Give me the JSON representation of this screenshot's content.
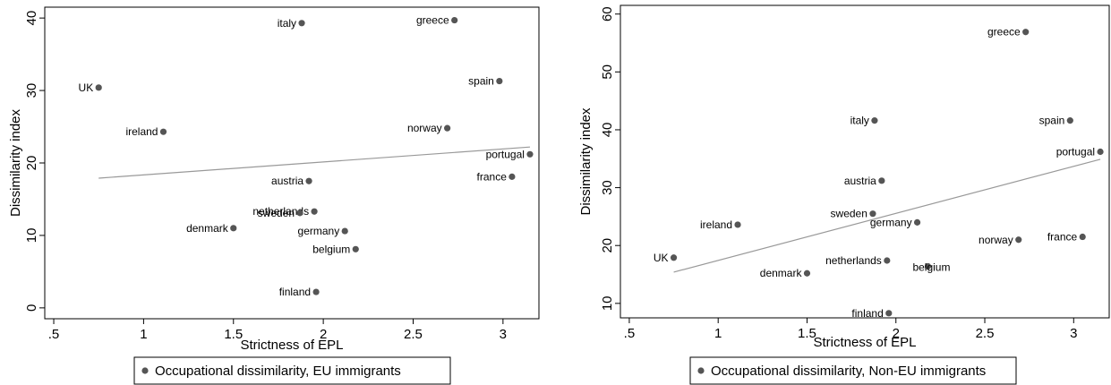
{
  "chart_data": [
    {
      "type": "scatter",
      "xlabel": "Strictness of EPL",
      "ylabel": "Dissimilarity index",
      "xlim": [
        0.45,
        3.2
      ],
      "ylim": [
        -1.5,
        41.5
      ],
      "xticks": [
        0.5,
        1,
        1.5,
        2,
        2.5,
        3
      ],
      "xtick_labels": [
        ".5",
        "1",
        "1.5",
        "2",
        "2.5",
        "3"
      ],
      "yticks": [
        0,
        10,
        20,
        30,
        40
      ],
      "ytick_labels": [
        "0",
        "10",
        "20",
        "30",
        "40"
      ],
      "grid": false,
      "legend": {
        "position": "bottom",
        "entries": [
          "Occupational dissimilarity, EU immigrants"
        ]
      },
      "colors": {
        "points": "#555555",
        "fit_line": "#999999"
      },
      "points": [
        {
          "label": "italy",
          "x": 1.88,
          "y": 39.3,
          "label_side": "left"
        },
        {
          "label": "greece",
          "x": 2.73,
          "y": 39.7,
          "label_side": "left"
        },
        {
          "label": "UK",
          "x": 0.75,
          "y": 30.4,
          "label_side": "left"
        },
        {
          "label": "spain",
          "x": 2.98,
          "y": 31.3,
          "label_side": "left"
        },
        {
          "label": "ireland",
          "x": 1.11,
          "y": 24.3,
          "label_side": "left"
        },
        {
          "label": "norway",
          "x": 2.69,
          "y": 24.8,
          "label_side": "left"
        },
        {
          "label": "portugal",
          "x": 3.15,
          "y": 21.2,
          "label_side": "left"
        },
        {
          "label": "france",
          "x": 3.05,
          "y": 18.1,
          "label_side": "left"
        },
        {
          "label": "austria",
          "x": 1.92,
          "y": 17.5,
          "label_side": "left"
        },
        {
          "label": "netherlands",
          "x": 1.95,
          "y": 13.3,
          "label_side": "left"
        },
        {
          "label": "sweden",
          "x": 1.87,
          "y": 13.1,
          "label_side": "left"
        },
        {
          "label": "denmark",
          "x": 1.5,
          "y": 11.0,
          "label_side": "left"
        },
        {
          "label": "germany",
          "x": 2.12,
          "y": 10.6,
          "label_side": "left"
        },
        {
          "label": "belgium",
          "x": 2.18,
          "y": 8.1,
          "label_side": "left"
        },
        {
          "label": "finland",
          "x": 1.96,
          "y": 2.2,
          "label_side": "left"
        }
      ],
      "fit_line": {
        "x": [
          0.75,
          3.15
        ],
        "y": [
          17.9,
          22.2
        ]
      }
    },
    {
      "type": "scatter",
      "xlabel": "Strictness of EPL",
      "ylabel": "Dissimilarity index",
      "xlim": [
        0.45,
        3.2
      ],
      "ylim": [
        7.5,
        61.5
      ],
      "xticks": [
        0.5,
        1,
        1.5,
        2,
        2.5,
        3
      ],
      "xtick_labels": [
        ".5",
        "1",
        "1.5",
        "2",
        "2.5",
        "3"
      ],
      "yticks": [
        10,
        20,
        30,
        40,
        50,
        60
      ],
      "ytick_labels": [
        "10",
        "20",
        "30",
        "40",
        "50",
        "60"
      ],
      "grid": false,
      "legend": {
        "position": "bottom",
        "entries": [
          "Occupational dissimilarity, Non-EU immigrants"
        ]
      },
      "colors": {
        "points": "#555555",
        "fit_line": "#999999"
      },
      "points": [
        {
          "label": "greece",
          "x": 2.73,
          "y": 56.9,
          "label_side": "left"
        },
        {
          "label": "italy",
          "x": 1.88,
          "y": 41.6,
          "label_side": "left"
        },
        {
          "label": "spain",
          "x": 2.98,
          "y": 41.6,
          "label_side": "left"
        },
        {
          "label": "portugal",
          "x": 3.15,
          "y": 36.2,
          "label_side": "left"
        },
        {
          "label": "austria",
          "x": 1.92,
          "y": 31.2,
          "label_side": "left"
        },
        {
          "label": "sweden",
          "x": 1.87,
          "y": 25.5,
          "label_side": "left"
        },
        {
          "label": "ireland",
          "x": 1.11,
          "y": 23.6,
          "label_side": "left"
        },
        {
          "label": "germany",
          "x": 2.12,
          "y": 24.0,
          "label_side": "left"
        },
        {
          "label": "UK",
          "x": 0.75,
          "y": 17.9,
          "label_side": "left"
        },
        {
          "label": "norway",
          "x": 2.69,
          "y": 21.0,
          "label_side": "left"
        },
        {
          "label": "france",
          "x": 3.05,
          "y": 21.5,
          "label_side": "left"
        },
        {
          "label": "netherlands",
          "x": 1.95,
          "y": 17.4,
          "label_side": "left"
        },
        {
          "label": "belgium",
          "x": 2.18,
          "y": 16.4,
          "label_side": "below"
        },
        {
          "label": "denmark",
          "x": 1.5,
          "y": 15.2,
          "label_side": "left"
        },
        {
          "label": "finland",
          "x": 1.96,
          "y": 8.3,
          "label_side": "left"
        }
      ],
      "fit_line": {
        "x": [
          0.75,
          3.15
        ],
        "y": [
          15.4,
          34.9
        ]
      }
    }
  ]
}
